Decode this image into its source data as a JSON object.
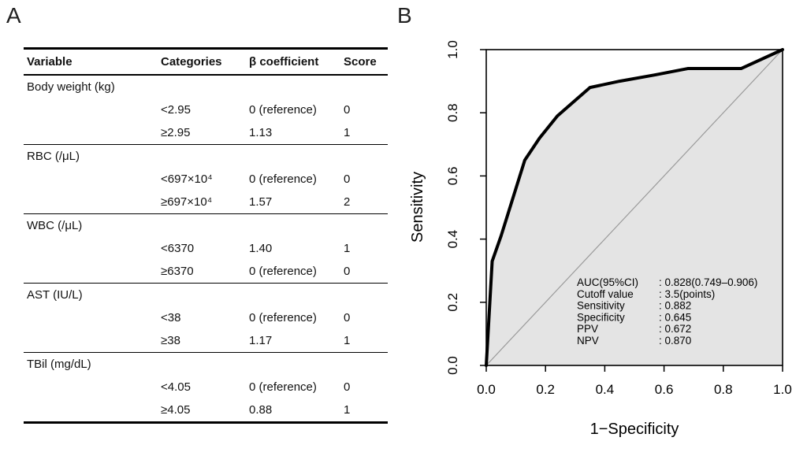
{
  "figure": {
    "panel_a_label": "A",
    "panel_b_label": "B"
  },
  "table": {
    "headers": [
      "Variable",
      "Categories",
      "β coefficient",
      "Score"
    ],
    "groups": [
      {
        "variable": "Body weight (kg)",
        "rows": [
          {
            "category": "<2.95",
            "beta": "0 (reference)",
            "score": "0"
          },
          {
            "category": "≥2.95",
            "beta": "1.13",
            "score": "1"
          }
        ]
      },
      {
        "variable": "RBC (/μL)",
        "rows": [
          {
            "category": "<697×10⁴",
            "beta": "0 (reference)",
            "score": "0"
          },
          {
            "category": "≥697×10⁴",
            "beta": "1.57",
            "score": "2"
          }
        ]
      },
      {
        "variable": "WBC (/μL)",
        "rows": [
          {
            "category": "<6370",
            "beta": "1.40",
            "score": "1"
          },
          {
            "category": "≥6370",
            "beta": "0 (reference)",
            "score": "0"
          }
        ]
      },
      {
        "variable": "AST (IU/L)",
        "rows": [
          {
            "category": "<38",
            "beta": "0 (reference)",
            "score": "0"
          },
          {
            "category": "≥38",
            "beta": "1.17",
            "score": "1"
          }
        ]
      },
      {
        "variable": "TBil (mg/dL)",
        "rows": [
          {
            "category": "<4.05",
            "beta": "0 (reference)",
            "score": "0"
          },
          {
            "category": "≥4.05",
            "beta": "0.88",
            "score": "1"
          }
        ]
      }
    ]
  },
  "chart_data": {
    "type": "line",
    "title": "",
    "xlabel": "1−Specificity",
    "ylabel": "Sensitivity",
    "xlim": [
      0,
      1
    ],
    "ylim": [
      0,
      1
    ],
    "xticks": [
      "0.0",
      "0.2",
      "0.4",
      "0.6",
      "0.8",
      "1.0"
    ],
    "yticks": [
      "0.0",
      "0.2",
      "0.4",
      "0.6",
      "0.8",
      "1.0"
    ],
    "grid": false,
    "legend": "none",
    "diagonal_reference_line": true,
    "area_fill": "#e4e4e4",
    "curve_color": "#000000",
    "diagonal_color": "#9a9a9a",
    "roc_points": [
      [
        0.0,
        0.0
      ],
      [
        0.02,
        0.33
      ],
      [
        0.05,
        0.41
      ],
      [
        0.08,
        0.5
      ],
      [
        0.13,
        0.65
      ],
      [
        0.18,
        0.72
      ],
      [
        0.24,
        0.79
      ],
      [
        0.35,
        0.88
      ],
      [
        0.45,
        0.9
      ],
      [
        0.57,
        0.92
      ],
      [
        0.68,
        0.94
      ],
      [
        0.86,
        0.94
      ],
      [
        1.0,
        1.0
      ]
    ],
    "stats": [
      {
        "label": "AUC(95%CI)",
        "value": "0.828(0.749–0.906)"
      },
      {
        "label": "Cutoff value",
        "value": "3.5(points)"
      },
      {
        "label": "Sensitivity",
        "value": "0.882"
      },
      {
        "label": "Specificity",
        "value": "0.645"
      },
      {
        "label": "PPV",
        "value": "0.672"
      },
      {
        "label": "NPV",
        "value": "0.870"
      }
    ]
  }
}
